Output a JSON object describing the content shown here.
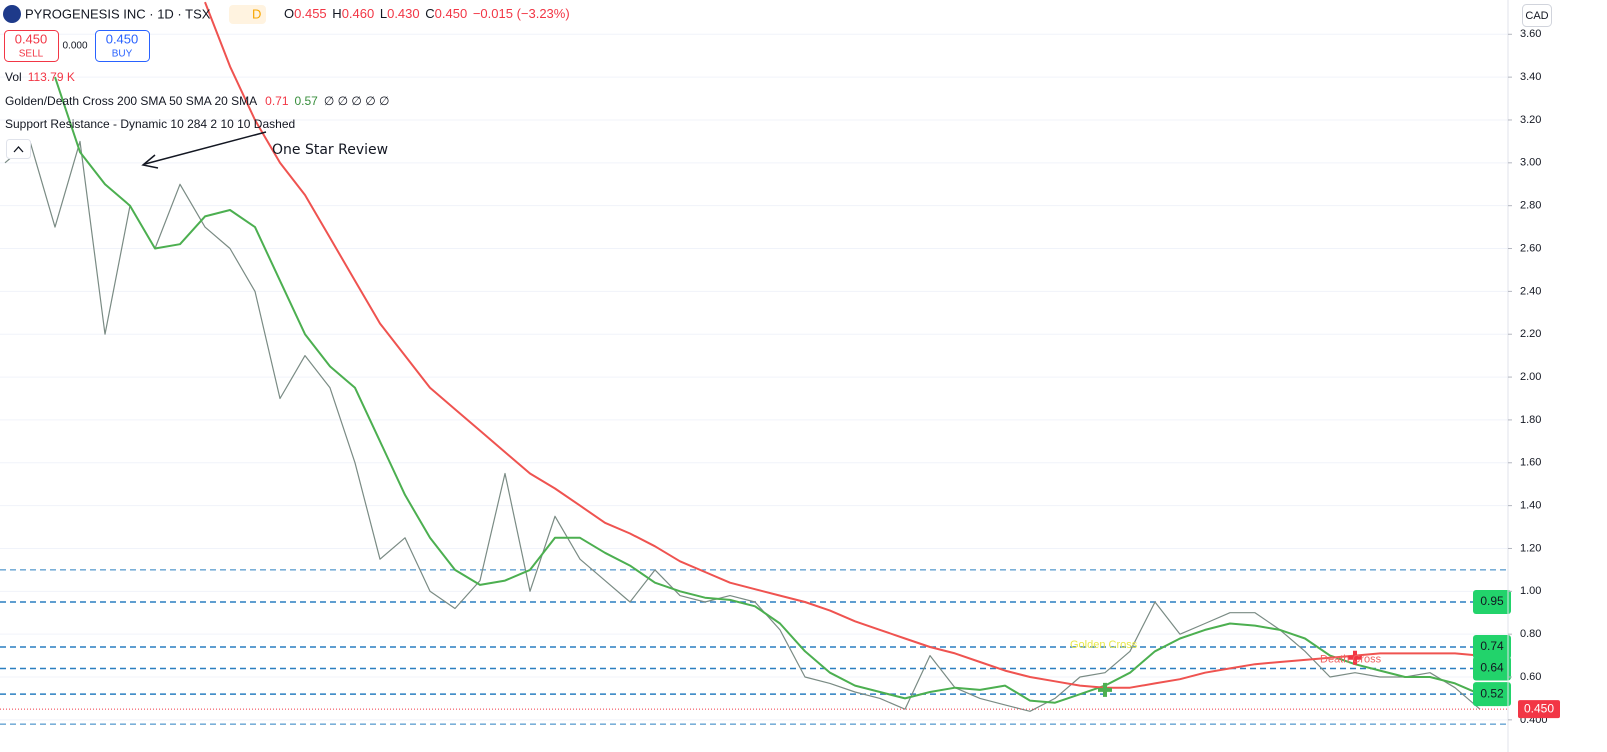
{
  "header": {
    "symbol": "PYROGENESIS INC · 1D · TSX",
    "badge": "D",
    "open_label": "O",
    "open": "0.455",
    "high_label": "H",
    "high": "0.460",
    "low_label": "L",
    "low": "0.430",
    "close_label": "C",
    "close": "0.450",
    "change": "−0.015 (−3.23%)"
  },
  "order": {
    "sell_price": "0.450",
    "sell": "SELL",
    "spread": "0.000",
    "buy_price": "0.450",
    "buy": "BUY"
  },
  "legend": {
    "vol_label": "Vol",
    "vol_value": "113.79 K",
    "cross_name": "Golden/Death Cross 200 SMA 50 SMA 20 SMA",
    "cross_v1": "0.71",
    "cross_v2": "0.57",
    "cross_rest": "∅ ∅ ∅ ∅ ∅",
    "sr_name": "Support Resistance - Dynamic 10 284 2 10 10 Dashed"
  },
  "currency": "CAD",
  "chart_data": {
    "type": "line",
    "ylim": [
      0.25,
      3.76
    ],
    "yticks": [
      {
        "value": 3.6,
        "label": "3.60"
      },
      {
        "value": 3.4,
        "label": "3.40"
      },
      {
        "value": 3.2,
        "label": "3.20"
      },
      {
        "value": 3.0,
        "label": "3.00"
      },
      {
        "value": 2.8,
        "label": "2.80"
      },
      {
        "value": 2.6,
        "label": "2.60"
      },
      {
        "value": 2.4,
        "label": "2.40"
      },
      {
        "value": 2.2,
        "label": "2.20"
      },
      {
        "value": 2.0,
        "label": "2.00"
      },
      {
        "value": 1.8,
        "label": "1.80"
      },
      {
        "value": 1.6,
        "label": "1.60"
      },
      {
        "value": 1.4,
        "label": "1.40"
      },
      {
        "value": 1.2,
        "label": "1.20"
      },
      {
        "value": 1.0,
        "label": "1.00"
      },
      {
        "value": 0.8,
        "label": "0.80"
      },
      {
        "value": 0.6,
        "label": "0.60"
      },
      {
        "value": 0.4,
        "label": "0.400"
      }
    ],
    "grid": true,
    "series": [
      {
        "color": "#7a8b84",
        "values": [
          3.0,
          3.1,
          2.7,
          3.1,
          2.2,
          2.8,
          2.6,
          2.9,
          2.7,
          2.6,
          2.4,
          1.9,
          2.1,
          1.95,
          1.6,
          1.15,
          1.25,
          1.0,
          0.92,
          1.05,
          1.55,
          1.0,
          1.35,
          1.15,
          1.05,
          0.95,
          1.1,
          0.98,
          0.95,
          0.98,
          0.95,
          0.82,
          0.6,
          0.57,
          0.53,
          0.5,
          0.45,
          0.7,
          0.55,
          0.5,
          0.47,
          0.44,
          0.5,
          0.6,
          0.62,
          0.72,
          0.95,
          0.8,
          0.85,
          0.9,
          0.9,
          0.82,
          0.72,
          0.6,
          0.62,
          0.6,
          0.6,
          0.62,
          0.55,
          0.45
        ]
      },
      {
        "color": "#4caf50",
        "values": [
          null,
          null,
          3.4,
          3.05,
          2.9,
          2.8,
          2.6,
          2.62,
          2.75,
          2.78,
          2.7,
          2.45,
          2.2,
          2.05,
          1.95,
          1.7,
          1.45,
          1.25,
          1.1,
          1.03,
          1.05,
          1.1,
          1.25,
          1.25,
          1.18,
          1.12,
          1.04,
          1.0,
          0.97,
          0.96,
          0.93,
          0.85,
          0.72,
          0.62,
          0.56,
          0.53,
          0.5,
          0.53,
          0.55,
          0.54,
          0.56,
          0.49,
          0.48,
          0.52,
          0.56,
          0.62,
          0.72,
          0.78,
          0.82,
          0.85,
          0.84,
          0.82,
          0.78,
          0.7,
          0.66,
          0.63,
          0.6,
          0.6,
          0.57,
          0.52
        ]
      },
      {
        "color": "#ef5350",
        "values": [
          null,
          null,
          null,
          null,
          null,
          null,
          null,
          null,
          3.75,
          3.45,
          3.2,
          3.0,
          2.85,
          2.65,
          2.45,
          2.25,
          2.1,
          1.95,
          1.85,
          1.75,
          1.65,
          1.55,
          1.48,
          1.4,
          1.32,
          1.27,
          1.21,
          1.14,
          1.09,
          1.04,
          1.01,
          0.98,
          0.95,
          0.91,
          0.86,
          0.82,
          0.78,
          0.74,
          0.71,
          0.67,
          0.63,
          0.6,
          0.58,
          0.56,
          0.55,
          0.55,
          0.57,
          0.59,
          0.62,
          0.64,
          0.66,
          0.67,
          0.68,
          0.69,
          0.7,
          0.71,
          0.71,
          0.71,
          0.71,
          0.7
        ]
      }
    ],
    "levels": [
      {
        "value": 1.1
      },
      {
        "value": 0.95,
        "label": "0.95"
      },
      {
        "value": 0.74,
        "label": "0.74"
      },
      {
        "value": 0.64,
        "label": "0.64"
      },
      {
        "value": 0.52,
        "label": "0.52"
      },
      {
        "value": 0.38
      }
    ],
    "level_color": "#2a7fc0",
    "level_label_color": "#22d36b",
    "last_price": {
      "value": 0.45,
      "label": "0.450",
      "color": "#f23645"
    },
    "crosses": [
      {
        "label": "Golden Cross",
        "index": 44,
        "value": 0.54,
        "color": "#4caf50",
        "text_color": "#e8e84a"
      },
      {
        "label": "Death Cross",
        "index": 54,
        "value": 0.69,
        "color": "#f23645",
        "text_color": "#f06262"
      }
    ],
    "annotation": "One Star Review"
  }
}
